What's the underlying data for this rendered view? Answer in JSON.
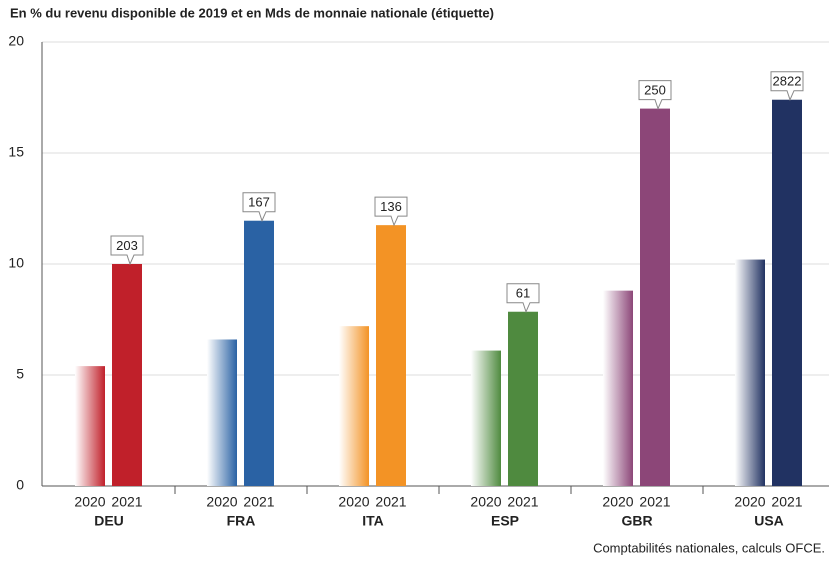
{
  "chart_data": {
    "type": "bar",
    "title": "En % du revenu disponible de 2019 et en Mds de monnaie nationale (étiquette)",
    "source": "Comptabilités nationales, calculs OFCE.",
    "categories": [
      "DEU",
      "FRA",
      "ITA",
      "ESP",
      "GBR",
      "USA"
    ],
    "category_colors": [
      "#c0202a",
      "#2a62a4",
      "#f39325",
      "#4f8a3f",
      "#8c4678",
      "#213262"
    ],
    "series": [
      {
        "name": "2020",
        "values": [
          5.4,
          6.6,
          7.2,
          6.1,
          8.8,
          10.2
        ]
      },
      {
        "name": "2021",
        "values": [
          10.0,
          11.95,
          11.75,
          7.85,
          17.0,
          17.4
        ],
        "annotations": [
          "203",
          "167",
          "136",
          "61",
          "250",
          "2822"
        ]
      }
    ],
    "ylim": [
      0,
      20
    ],
    "yticks": [
      0,
      5,
      10,
      15,
      20
    ],
    "grid": true
  }
}
